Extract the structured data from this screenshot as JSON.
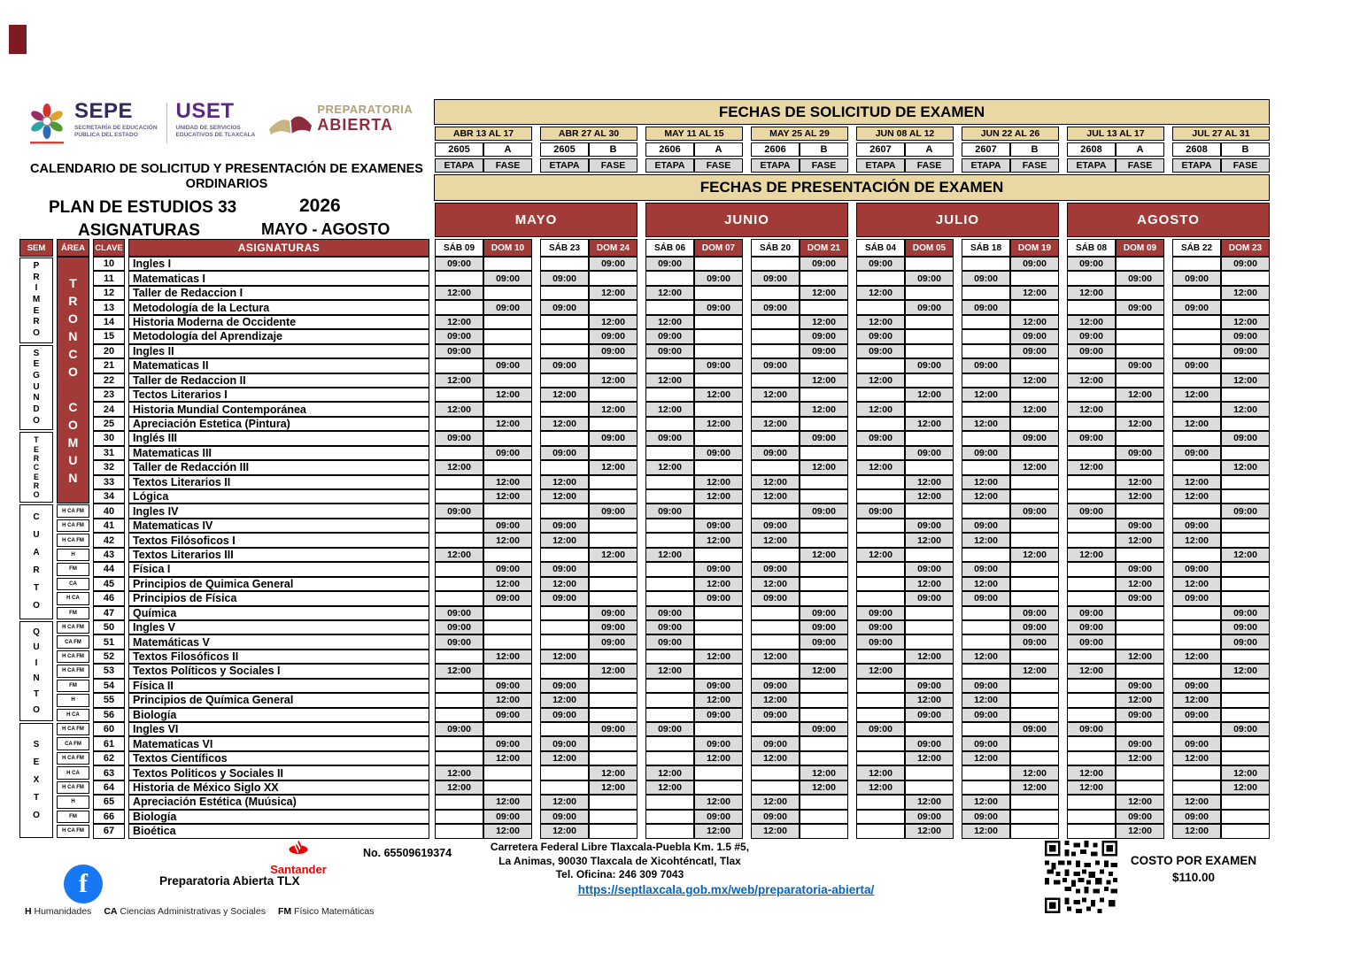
{
  "colors": {
    "maroon": "#A23B38",
    "tan": "#EAD8A4",
    "cell_gray": "#D9D9D9",
    "time_gray": "#DCDCDC",
    "link_blue": "#0563C1",
    "santander_red": "#EC0000",
    "facebook_blue": "#1877F2",
    "sepe_purple": "#33295E",
    "uset_purple": "#5B2A84",
    "prepa_gold": "#B3A077",
    "prepa_maroon": "#8E2B3E"
  },
  "header": {
    "sepe": {
      "name": "SEPE",
      "sub1": "SECRETARÍA DE EDUCACIÓN",
      "sub2": "PÚBLICA DEL ESTADO"
    },
    "uset": {
      "name": "USET",
      "sub1": "UNIDAD DE SERVICIOS",
      "sub2": "EDUCATIVOS DE TLAXCALA"
    },
    "prepa": {
      "line1": "PREPARATORIA",
      "line2": "ABIERTA"
    },
    "title1": "CALENDARIO DE SOLICITUD Y PRESENTACIÓN DE EXAMENES",
    "title2": "ORDINARIOS",
    "plan": "PLAN DE ESTUDIOS 33",
    "asignaturas_label": "ASIGNATURAS",
    "year": "2026",
    "period": "MAYO - AGOSTO"
  },
  "solicitud": {
    "title": "FECHAS DE SOLICITUD DE EXAMEN",
    "etapa_label": "ETAPA",
    "fase_label": "FASE",
    "slots": [
      {
        "range": "ABR 13 AL 17",
        "etapa": "2605",
        "fase": "A"
      },
      {
        "range": "ABR 27 AL 30",
        "etapa": "2605",
        "fase": "B"
      },
      {
        "range": "MAY 11 AL 15",
        "etapa": "2606",
        "fase": "A"
      },
      {
        "range": "MAY 25 AL 29",
        "etapa": "2606",
        "fase": "B"
      },
      {
        "range": "JUN 08 AL 12",
        "etapa": "2607",
        "fase": "A"
      },
      {
        "range": "JUN 22 AL 26",
        "etapa": "2607",
        "fase": "B"
      },
      {
        "range": "JUL 13 AL 17",
        "etapa": "2608",
        "fase": "A"
      },
      {
        "range": "JUL 27 AL 31",
        "etapa": "2608",
        "fase": "B"
      }
    ]
  },
  "presentacion": {
    "title": "FECHAS DE PRESENTACIÓN DE EXAMEN",
    "months": [
      {
        "name": "MAYO",
        "days": [
          {
            "label": "SÁB 09",
            "type": "sab"
          },
          {
            "label": "DOM 10",
            "type": "dom"
          },
          {
            "label": "SÁB 23",
            "type": "sab"
          },
          {
            "label": "DOM 24",
            "type": "dom"
          }
        ]
      },
      {
        "name": "JUNIO",
        "days": [
          {
            "label": "SÁB 06",
            "type": "sab"
          },
          {
            "label": "DOM 07",
            "type": "dom"
          },
          {
            "label": "SÁB 20",
            "type": "sab"
          },
          {
            "label": "DOM 21",
            "type": "dom"
          }
        ]
      },
      {
        "name": "JULIO",
        "days": [
          {
            "label": "SÁB 04",
            "type": "sab"
          },
          {
            "label": "DOM 05",
            "type": "dom"
          },
          {
            "label": "SÁB 18",
            "type": "sab"
          },
          {
            "label": "DOM 19",
            "type": "dom"
          }
        ]
      },
      {
        "name": "AGOSTO",
        "days": [
          {
            "label": "SÁB 08",
            "type": "sab"
          },
          {
            "label": "DOM 09",
            "type": "dom"
          },
          {
            "label": "SÁB 22",
            "type": "sab"
          },
          {
            "label": "DOM 23",
            "type": "dom"
          }
        ]
      }
    ]
  },
  "grid": {
    "headers": {
      "sem": "SEM",
      "area": "ÁREA",
      "clave": "CLAVE",
      "asignaturas": "ASIGNATURAS"
    },
    "semesters": [
      {
        "name": "PRIMERO",
        "span": 6
      },
      {
        "name": "SEGUNDO",
        "span": 6
      },
      {
        "name": "TERCERO",
        "span": 5
      },
      {
        "name": "CUARTO",
        "span": 8
      },
      {
        "name": "QUINTO",
        "span": 7
      },
      {
        "name": "SEXTO",
        "span": 8
      }
    ],
    "tronco": {
      "label": "TRONCO COMUN",
      "span": 17
    },
    "slots_note": "slots = day indices (0-3) within EVERY month block where the exam time appears; pattern repeats identically for MAYO, JUNIO, JULIO, AGOSTO",
    "rows": [
      {
        "clave": "10",
        "area": "",
        "subject": "Ingles I",
        "time": "09:00",
        "slots": [
          0,
          3
        ]
      },
      {
        "clave": "11",
        "area": "",
        "subject": "Matematicas  I",
        "time": "09:00",
        "slots": [
          1,
          2
        ]
      },
      {
        "clave": "12",
        "area": "",
        "subject": "Taller de Redaccion I",
        "time": "12:00",
        "slots": [
          0,
          3
        ]
      },
      {
        "clave": "13",
        "area": "",
        "subject": "Metodología de la Lectura",
        "time": "09:00",
        "slots": [
          1,
          2
        ]
      },
      {
        "clave": "14",
        "area": "",
        "subject": "Historia Moderna de Occidente",
        "time": "12:00",
        "slots": [
          0,
          3
        ]
      },
      {
        "clave": "15",
        "area": "",
        "subject": "Metodología del Aprendizaje",
        "time": "09:00",
        "slots": [
          0,
          3
        ]
      },
      {
        "clave": "20",
        "area": "",
        "subject": "Ingles II",
        "time": "09:00",
        "slots": [
          0,
          3
        ]
      },
      {
        "clave": "21",
        "area": "",
        "subject": "Matematicas II",
        "time": "09:00",
        "slots": [
          1,
          2
        ]
      },
      {
        "clave": "22",
        "area": "",
        "subject": "Taller de Redaccion II",
        "time": "12:00",
        "slots": [
          0,
          3
        ]
      },
      {
        "clave": "23",
        "area": "",
        "subject": "Tectos Literarios I",
        "time": "12:00",
        "slots": [
          1,
          2
        ]
      },
      {
        "clave": "24",
        "area": "",
        "subject": "Historia Mundial Contemporánea",
        "time": "12:00",
        "slots": [
          0,
          3
        ]
      },
      {
        "clave": "25",
        "area": "",
        "subject": "Apreciación Estetica (Pintura)",
        "time": "12:00",
        "slots": [
          1,
          2
        ]
      },
      {
        "clave": "30",
        "area": "",
        "subject": "Inglés III",
        "time": "09:00",
        "slots": [
          0,
          3
        ]
      },
      {
        "clave": "31",
        "area": "",
        "subject": "Matematicas III",
        "time": "09:00",
        "slots": [
          1,
          2
        ]
      },
      {
        "clave": "32",
        "area": "",
        "subject": "Taller de Redacción III",
        "time": "12:00",
        "slots": [
          0,
          3
        ]
      },
      {
        "clave": "33",
        "area": "",
        "subject": "Textos Literarios II",
        "time": "12:00",
        "slots": [
          1,
          2
        ]
      },
      {
        "clave": "34",
        "area": "",
        "subject": "Lógica",
        "time": "12:00",
        "slots": [
          1,
          2
        ]
      },
      {
        "clave": "40",
        "area": "H CA FM",
        "subject": "Ingles IV",
        "time": "09:00",
        "slots": [
          0,
          3
        ]
      },
      {
        "clave": "41",
        "area": "H CA FM",
        "subject": "Matematicas IV",
        "time": "09:00",
        "slots": [
          1,
          2
        ]
      },
      {
        "clave": "42",
        "area": "H CA FM",
        "subject": "Textos Filósoficos I",
        "time": "12:00",
        "slots": [
          1,
          2
        ]
      },
      {
        "clave": "43",
        "area": "H",
        "subject": "Textos Literarios III",
        "time": "12:00",
        "slots": [
          0,
          3
        ]
      },
      {
        "clave": "44",
        "area": "FM",
        "subject": "Física I",
        "time": "09:00",
        "slots": [
          1,
          2
        ]
      },
      {
        "clave": "45",
        "area": "CA",
        "subject": "Principios de Quimica General",
        "time": "12:00",
        "slots": [
          1,
          2
        ]
      },
      {
        "clave": "46",
        "area": "H CA",
        "subject": "Principios de Física",
        "time": "09:00",
        "slots": [
          1,
          2
        ]
      },
      {
        "clave": "47",
        "area": "FM",
        "subject": "Química",
        "time": "09:00",
        "slots": [
          0,
          3
        ]
      },
      {
        "clave": "50",
        "area": "H CA FM",
        "subject": "Ingles V",
        "time": "09:00",
        "slots": [
          0,
          3
        ]
      },
      {
        "clave": "51",
        "area": "CA FM",
        "subject": "Matemáticas V",
        "time": "09:00",
        "slots": [
          0,
          3
        ]
      },
      {
        "clave": "52",
        "area": "H CA FM",
        "subject": "Textos Filosóficos II",
        "time": "12:00",
        "slots": [
          1,
          2
        ]
      },
      {
        "clave": "53",
        "area": "H CA FM",
        "subject": "Textos Políticos y Sociales I",
        "time": "12:00",
        "slots": [
          0,
          3
        ]
      },
      {
        "clave": "54",
        "area": "FM",
        "subject": "Física II",
        "time": "09:00",
        "slots": [
          1,
          2
        ]
      },
      {
        "clave": "55",
        "area": "H",
        "subject": "Principios de Química General",
        "time": "12:00",
        "slots": [
          1,
          2
        ]
      },
      {
        "clave": "56",
        "area": "H CA",
        "subject": "Biología",
        "time": "09:00",
        "slots": [
          1,
          2
        ]
      },
      {
        "clave": "60",
        "area": "H CA FM",
        "subject": "Ingles VI",
        "time": "09:00",
        "slots": [
          0,
          3
        ]
      },
      {
        "clave": "61",
        "area": "CA FM",
        "subject": "Matematicas VI",
        "time": "09:00",
        "slots": [
          1,
          2
        ]
      },
      {
        "clave": "62",
        "area": "H CA FM",
        "subject": "Textos Científicos",
        "time": "12:00",
        "slots": [
          1,
          2
        ]
      },
      {
        "clave": "63",
        "area": "H CA",
        "subject": "Textos Politicos y Sociales II",
        "time": "12:00",
        "slots": [
          0,
          3
        ]
      },
      {
        "clave": "64",
        "area": "H CA FM",
        "subject": "Historia de México Siglo XX",
        "time": "12:00",
        "slots": [
          0,
          3
        ]
      },
      {
        "clave": "65",
        "area": "H",
        "subject": "Apreciación Estética (Muúsica)",
        "time": "12:00",
        "slots": [
          1,
          2
        ]
      },
      {
        "clave": "66",
        "area": "FM",
        "subject": "Biología",
        "time": "09:00",
        "slots": [
          1,
          2
        ]
      },
      {
        "clave": "67",
        "area": "H CA FM",
        "subject": "Bioética",
        "time": "12:00",
        "slots": [
          1,
          2
        ]
      }
    ]
  },
  "footer": {
    "bank_brand": "Santander",
    "account_no": "No. 65509619374",
    "facebook_label": "Preparatoria Abierta TLX",
    "address1": "Carretera Federal Libre Tlaxcala-Puebla Km. 1.5 #5,",
    "address2": "La Animas, 90030 Tlaxcala de Xicohténcatl, Tlax",
    "phone": "Tel. Oficina: 246 309 7043",
    "url": "https://septlaxcala.gob.mx/web/preparatoria-abierta/",
    "cost_label": "COSTO POR EXAMEN",
    "cost_value": "$110.00",
    "legend": [
      {
        "code": "H",
        "label": "Humanidades"
      },
      {
        "code": "CA",
        "label": "Ciencias Administrativas y Sociales"
      },
      {
        "code": "FM",
        "label": "Físico Matemáticas"
      }
    ]
  }
}
